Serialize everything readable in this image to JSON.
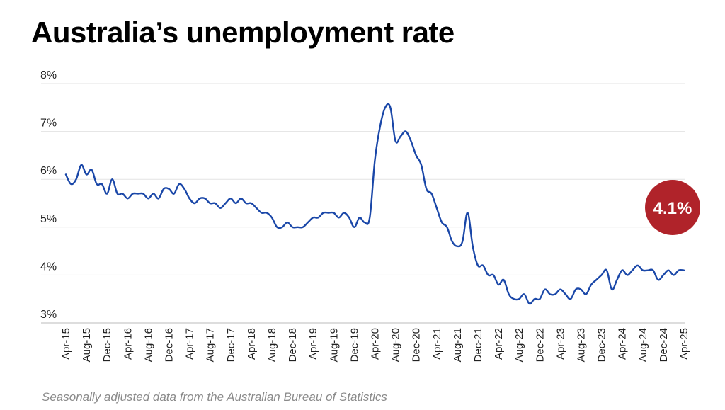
{
  "page": {
    "title": "Australia’s unemployment rate",
    "source_note": "Seasonally adjusted data from the Australian Bureau of Statistics"
  },
  "colors": {
    "line": "#1a47a8",
    "badge": "#b0232a",
    "grid": "#e3e3e3",
    "axis": "#bbbbbb",
    "text": "#222222",
    "source_text": "#8a8a8a"
  },
  "chart_data": {
    "type": "line",
    "title": "Australia’s unemployment rate",
    "xlabel": "",
    "ylabel": "",
    "x_start": "Apr-15",
    "x_frequency": "monthly",
    "ylim": [
      3,
      8
    ],
    "y_ticks": [
      "3%",
      "4%",
      "5%",
      "6%",
      "7%",
      "8%"
    ],
    "x_ticks": [
      "Apr-15",
      "Aug-15",
      "Dec-15",
      "Apr-16",
      "Aug-16",
      "Dec-16",
      "Apr-17",
      "Aug-17",
      "Dec-17",
      "Apr-18",
      "Aug-18",
      "Dec-18",
      "Apr-19",
      "Aug-19",
      "Dec-19",
      "Apr-20",
      "Aug-20",
      "Dec-20",
      "Apr-21",
      "Aug-21",
      "Dec-21",
      "Apr-22",
      "Aug-22",
      "Dec-22",
      "Apr-23",
      "Aug-23",
      "Dec-23",
      "Apr-24",
      "Aug-24",
      "Dec-24",
      "Apr-25"
    ],
    "grid": true,
    "series": [
      {
        "values": [
          6.1,
          5.9,
          6.0,
          6.3,
          6.1,
          6.2,
          5.9,
          5.9,
          5.7,
          6.0,
          5.7,
          5.7,
          5.6,
          5.7,
          5.7,
          5.7,
          5.6,
          5.7,
          5.6,
          5.8,
          5.8,
          5.7,
          5.9,
          5.8,
          5.6,
          5.5,
          5.6,
          5.6,
          5.5,
          5.5,
          5.4,
          5.5,
          5.6,
          5.5,
          5.6,
          5.5,
          5.5,
          5.4,
          5.3,
          5.3,
          5.2,
          5.0,
          5.0,
          5.1,
          5.0,
          5.0,
          5.0,
          5.1,
          5.2,
          5.2,
          5.3,
          5.3,
          5.3,
          5.2,
          5.3,
          5.2,
          5.0,
          5.2,
          5.1,
          5.2,
          6.4,
          7.1,
          7.5,
          7.5,
          6.8,
          6.9,
          7.0,
          6.8,
          6.5,
          6.3,
          5.8,
          5.7,
          5.4,
          5.1,
          5.0,
          4.7,
          4.6,
          4.7,
          5.3,
          4.6,
          4.2,
          4.2,
          4.0,
          4.0,
          3.8,
          3.9,
          3.6,
          3.5,
          3.5,
          3.6,
          3.4,
          3.5,
          3.5,
          3.7,
          3.6,
          3.6,
          3.7,
          3.6,
          3.5,
          3.7,
          3.7,
          3.6,
          3.8,
          3.9,
          4.0,
          4.1,
          3.7,
          3.9,
          4.1,
          4.0,
          4.1,
          4.2,
          4.1,
          4.1,
          4.1,
          3.9,
          4.0,
          4.1,
          4.0,
          4.1,
          4.1
        ]
      }
    ],
    "latest_value_label": "4.1%"
  }
}
